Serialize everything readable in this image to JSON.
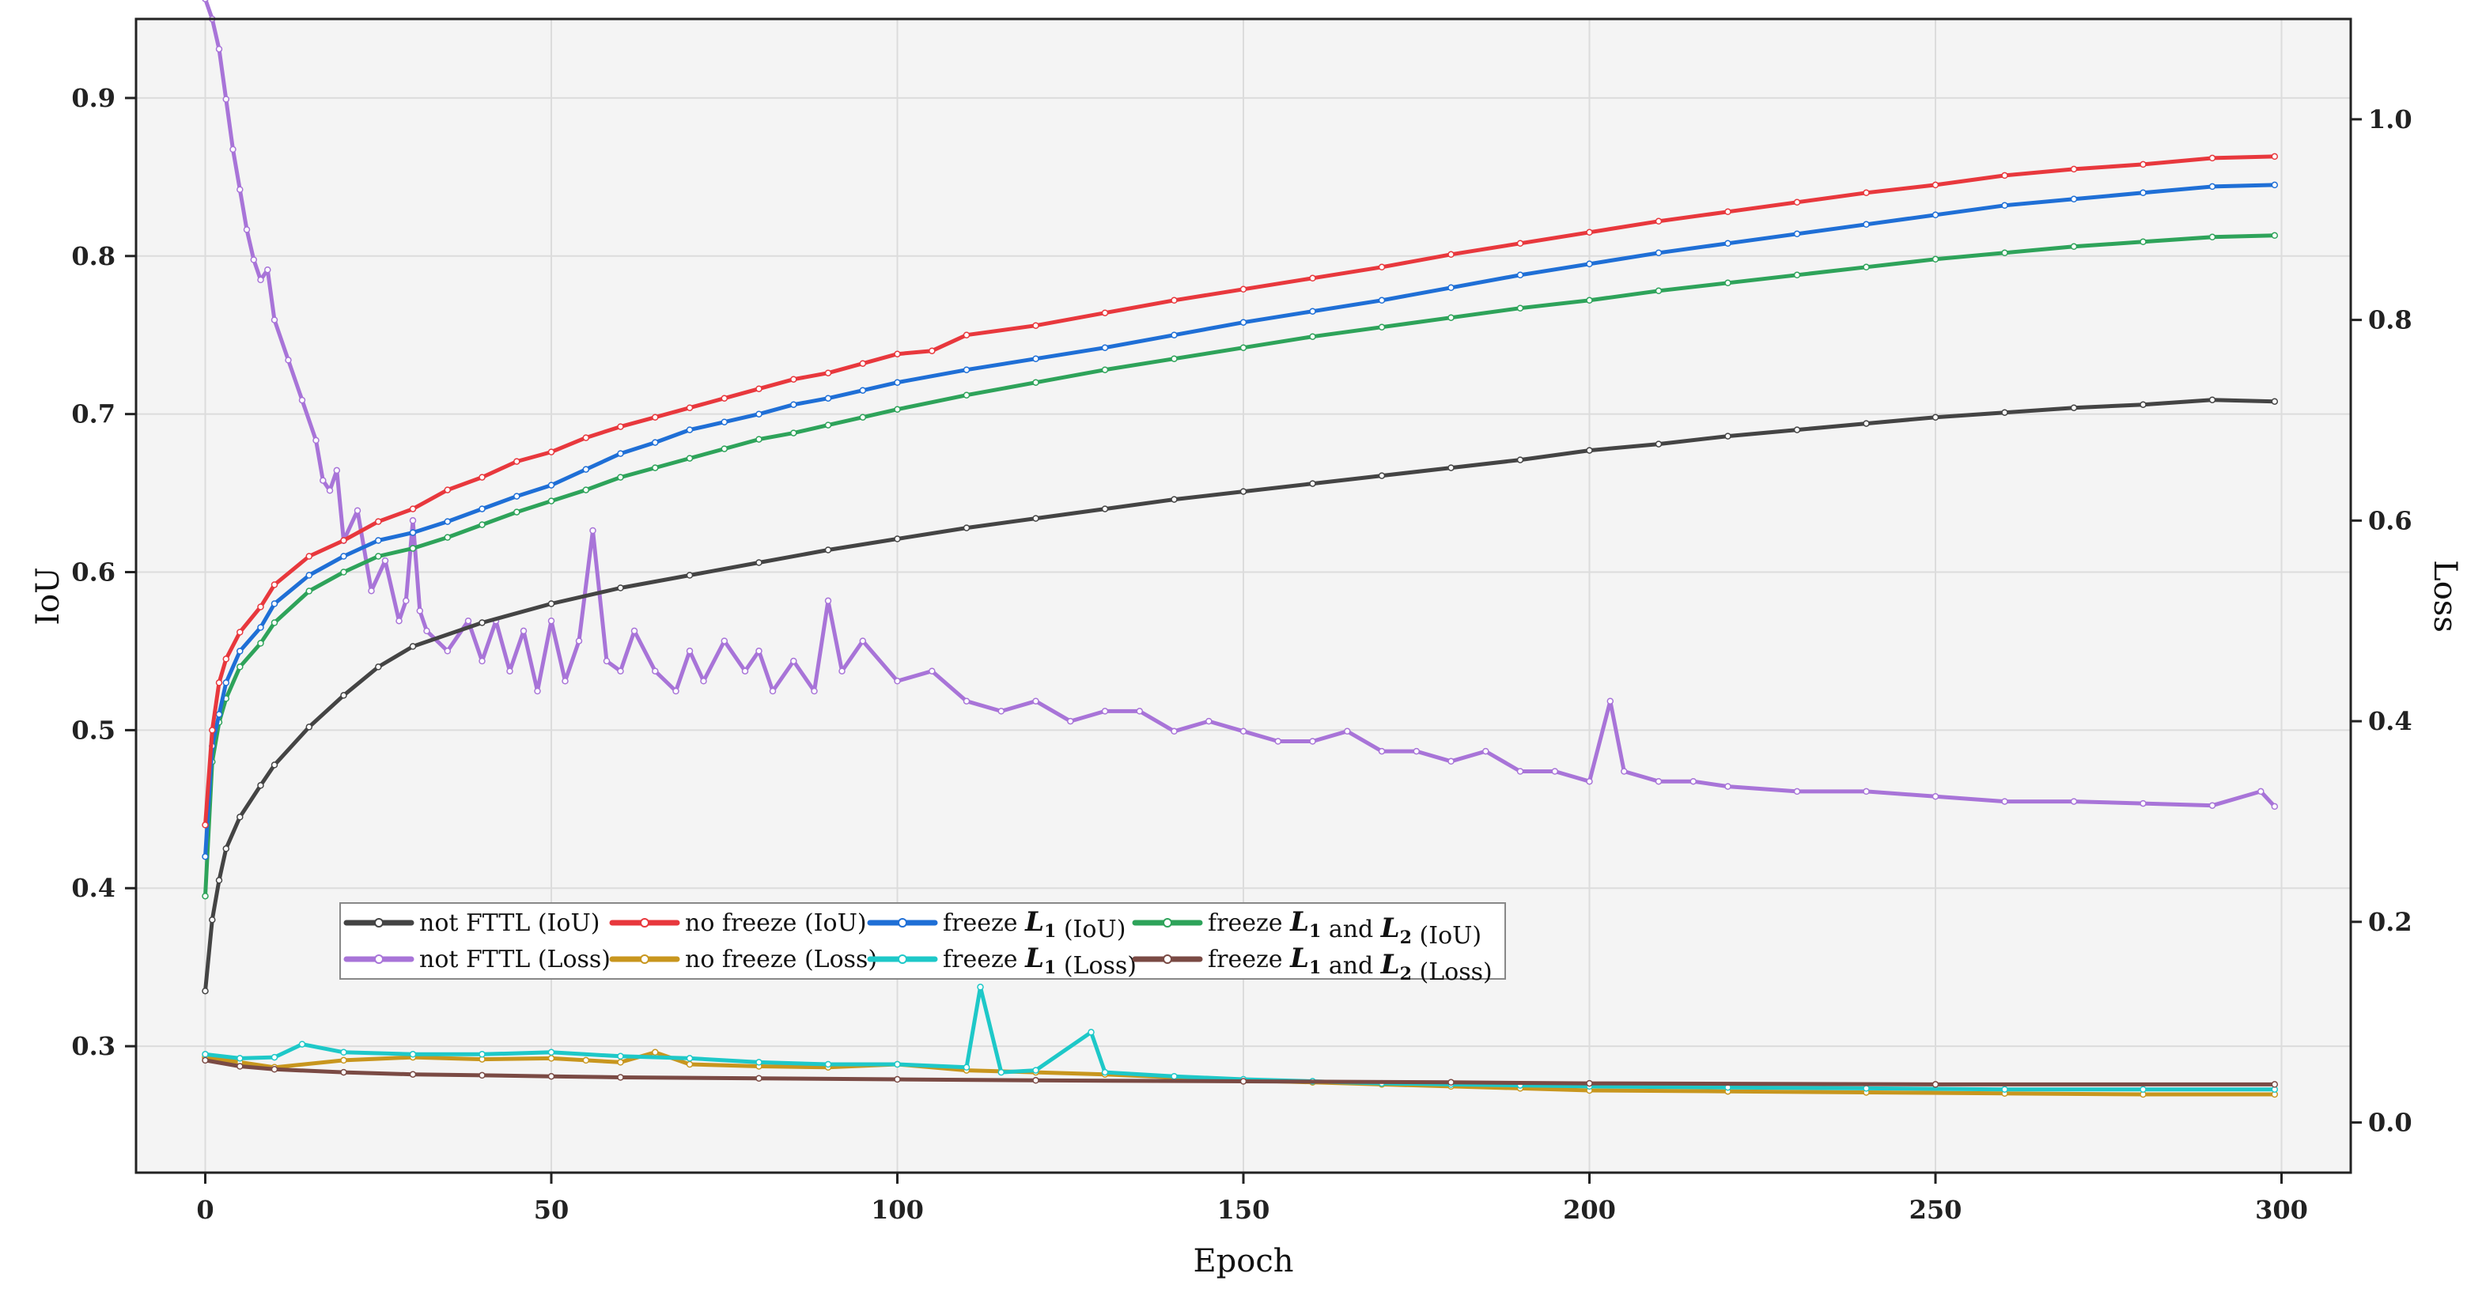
{
  "chart_data": {
    "type": "line",
    "xlabel": "Epoch",
    "ylabel_left": "IoU",
    "ylabel_right": "Loss",
    "xlim": [
      -10,
      310
    ],
    "ylim_left": [
      0.22,
      0.95
    ],
    "ylim_right": [
      -0.05,
      1.1
    ],
    "xticks": [
      0,
      50,
      100,
      150,
      200,
      250,
      300
    ],
    "yticks_left": [
      0.3,
      0.4,
      0.5,
      0.6,
      0.7,
      0.8,
      0.9
    ],
    "yticks_right": [
      0.0,
      0.2,
      0.4,
      0.6,
      0.8,
      1.0
    ],
    "ytick_labels_left": [
      "0.3",
      "0.4",
      "0.5",
      "0.6",
      "0.7",
      "0.8",
      "0.9"
    ],
    "ytick_labels_right": [
      "0.0",
      "0.2",
      "0.4",
      "0.6",
      "0.8",
      "1.0"
    ],
    "grid": true,
    "legend_position": "lower-left, inside, 2 rows x 4 columns",
    "series": [
      {
        "name": "not FTTL (IoU)",
        "axis": "left",
        "color": "#444444",
        "x": [
          0,
          1,
          2,
          3,
          5,
          8,
          10,
          15,
          20,
          25,
          30,
          40,
          50,
          60,
          70,
          80,
          90,
          100,
          110,
          120,
          130,
          140,
          150,
          160,
          170,
          180,
          190,
          200,
          210,
          220,
          230,
          240,
          250,
          260,
          270,
          280,
          290,
          299
        ],
        "y": [
          0.335,
          0.38,
          0.405,
          0.425,
          0.445,
          0.465,
          0.478,
          0.502,
          0.522,
          0.54,
          0.553,
          0.568,
          0.58,
          0.59,
          0.598,
          0.606,
          0.614,
          0.621,
          0.628,
          0.634,
          0.64,
          0.646,
          0.651,
          0.656,
          0.661,
          0.666,
          0.671,
          0.677,
          0.681,
          0.686,
          0.69,
          0.694,
          0.698,
          0.701,
          0.704,
          0.706,
          0.709,
          0.708
        ]
      },
      {
        "name": "no freeze (IoU)",
        "axis": "left",
        "color": "#e8383d",
        "x": [
          0,
          1,
          2,
          3,
          5,
          8,
          10,
          15,
          20,
          25,
          30,
          35,
          40,
          45,
          50,
          55,
          60,
          65,
          70,
          75,
          80,
          85,
          90,
          95,
          100,
          105,
          110,
          120,
          130,
          140,
          150,
          160,
          170,
          180,
          190,
          200,
          210,
          220,
          230,
          240,
          250,
          260,
          270,
          280,
          290,
          299
        ],
        "y": [
          0.44,
          0.5,
          0.53,
          0.545,
          0.562,
          0.578,
          0.592,
          0.61,
          0.62,
          0.632,
          0.64,
          0.652,
          0.66,
          0.67,
          0.676,
          0.685,
          0.692,
          0.698,
          0.704,
          0.71,
          0.716,
          0.722,
          0.726,
          0.732,
          0.738,
          0.74,
          0.75,
          0.756,
          0.764,
          0.772,
          0.779,
          0.786,
          0.793,
          0.801,
          0.808,
          0.815,
          0.822,
          0.828,
          0.834,
          0.84,
          0.845,
          0.851,
          0.855,
          0.858,
          0.862,
          0.863
        ]
      },
      {
        "name": "freeze L1 (IoU)",
        "axis": "left",
        "color": "#1f6fd6",
        "x": [
          0,
          1,
          2,
          3,
          5,
          8,
          10,
          15,
          20,
          25,
          30,
          35,
          40,
          45,
          50,
          55,
          60,
          65,
          70,
          75,
          80,
          85,
          90,
          95,
          100,
          110,
          120,
          130,
          140,
          150,
          160,
          170,
          180,
          190,
          200,
          210,
          220,
          230,
          240,
          250,
          260,
          270,
          280,
          290,
          299
        ],
        "y": [
          0.42,
          0.49,
          0.51,
          0.53,
          0.55,
          0.565,
          0.58,
          0.598,
          0.61,
          0.62,
          0.625,
          0.632,
          0.64,
          0.648,
          0.655,
          0.665,
          0.675,
          0.682,
          0.69,
          0.695,
          0.7,
          0.706,
          0.71,
          0.715,
          0.72,
          0.728,
          0.735,
          0.742,
          0.75,
          0.758,
          0.765,
          0.772,
          0.78,
          0.788,
          0.795,
          0.802,
          0.808,
          0.814,
          0.82,
          0.826,
          0.832,
          0.836,
          0.84,
          0.844,
          0.845
        ]
      },
      {
        "name": "freeze L1 and L2 (IoU)",
        "axis": "left",
        "color": "#2ea35a",
        "x": [
          0,
          1,
          2,
          3,
          5,
          8,
          10,
          15,
          20,
          25,
          30,
          35,
          40,
          45,
          50,
          55,
          60,
          65,
          70,
          75,
          80,
          85,
          90,
          95,
          100,
          110,
          120,
          130,
          140,
          150,
          160,
          170,
          180,
          190,
          200,
          210,
          220,
          230,
          240,
          250,
          260,
          270,
          280,
          290,
          299
        ],
        "y": [
          0.395,
          0.48,
          0.505,
          0.52,
          0.54,
          0.555,
          0.568,
          0.588,
          0.6,
          0.61,
          0.615,
          0.622,
          0.63,
          0.638,
          0.645,
          0.652,
          0.66,
          0.666,
          0.672,
          0.678,
          0.684,
          0.688,
          0.693,
          0.698,
          0.703,
          0.712,
          0.72,
          0.728,
          0.735,
          0.742,
          0.749,
          0.755,
          0.761,
          0.767,
          0.772,
          0.778,
          0.783,
          0.788,
          0.793,
          0.798,
          0.802,
          0.806,
          0.809,
          0.812,
          0.813
        ]
      },
      {
        "name": "not FTTL (Loss)",
        "axis": "right",
        "color": "#a874d8",
        "x": [
          0,
          1,
          2,
          3,
          4,
          5,
          6,
          7,
          8,
          9,
          10,
          12,
          14,
          16,
          17,
          18,
          19,
          20,
          22,
          24,
          26,
          28,
          29,
          30,
          31,
          32,
          35,
          38,
          40,
          42,
          44,
          46,
          48,
          50,
          52,
          54,
          56,
          58,
          60,
          62,
          65,
          68,
          70,
          72,
          75,
          78,
          80,
          82,
          85,
          88,
          90,
          92,
          95,
          100,
          105,
          110,
          115,
          120,
          125,
          130,
          135,
          140,
          145,
          150,
          155,
          160,
          165,
          170,
          175,
          180,
          185,
          190,
          195,
          200,
          203,
          205,
          210,
          215,
          220,
          230,
          240,
          250,
          260,
          270,
          280,
          290,
          297,
          299
        ],
        "y": [
          1.12,
          1.1,
          1.07,
          1.02,
          0.97,
          0.93,
          0.89,
          0.86,
          0.84,
          0.85,
          0.8,
          0.76,
          0.72,
          0.68,
          0.64,
          0.63,
          0.65,
          0.58,
          0.61,
          0.53,
          0.56,
          0.5,
          0.52,
          0.6,
          0.51,
          0.49,
          0.47,
          0.5,
          0.46,
          0.5,
          0.45,
          0.49,
          0.43,
          0.5,
          0.44,
          0.48,
          0.59,
          0.46,
          0.45,
          0.49,
          0.45,
          0.43,
          0.47,
          0.44,
          0.48,
          0.45,
          0.47,
          0.43,
          0.46,
          0.43,
          0.52,
          0.45,
          0.48,
          0.44,
          0.45,
          0.42,
          0.41,
          0.42,
          0.4,
          0.41,
          0.41,
          0.39,
          0.4,
          0.39,
          0.38,
          0.38,
          0.39,
          0.37,
          0.37,
          0.36,
          0.37,
          0.35,
          0.35,
          0.34,
          0.42,
          0.35,
          0.34,
          0.34,
          0.335,
          0.33,
          0.33,
          0.325,
          0.32,
          0.32,
          0.318,
          0.316,
          0.33,
          0.315
        ]
      },
      {
        "name": "no freeze (Loss)",
        "axis": "right",
        "color": "#c8961e",
        "x": [
          0,
          5,
          10,
          20,
          30,
          40,
          50,
          55,
          60,
          65,
          70,
          80,
          90,
          100,
          110,
          120,
          130,
          140,
          150,
          160,
          170,
          180,
          190,
          200,
          220,
          240,
          260,
          280,
          299
        ],
        "y": [
          0.065,
          0.06,
          0.055,
          0.062,
          0.065,
          0.063,
          0.064,
          0.062,
          0.06,
          0.07,
          0.058,
          0.056,
          0.055,
          0.058,
          0.052,
          0.05,
          0.048,
          0.045,
          0.042,
          0.04,
          0.038,
          0.036,
          0.034,
          0.032,
          0.031,
          0.03,
          0.029,
          0.028,
          0.028
        ]
      },
      {
        "name": "freeze L1 (Loss)",
        "axis": "right",
        "color": "#1ec8c8",
        "x": [
          0,
          5,
          10,
          14,
          20,
          30,
          40,
          50,
          60,
          70,
          80,
          90,
          100,
          110,
          112,
          115,
          120,
          128,
          130,
          140,
          150,
          160,
          170,
          180,
          190,
          200,
          220,
          240,
          260,
          280,
          299
        ],
        "y": [
          0.068,
          0.064,
          0.065,
          0.078,
          0.07,
          0.068,
          0.068,
          0.07,
          0.066,
          0.064,
          0.06,
          0.058,
          0.058,
          0.055,
          0.135,
          0.05,
          0.052,
          0.09,
          0.05,
          0.046,
          0.043,
          0.041,
          0.039,
          0.038,
          0.037,
          0.036,
          0.035,
          0.034,
          0.033,
          0.033,
          0.033
        ]
      },
      {
        "name": "freeze L1 and L2 (Loss)",
        "axis": "right",
        "color": "#7a4a44",
        "x": [
          0,
          5,
          10,
          20,
          30,
          40,
          50,
          60,
          80,
          100,
          120,
          150,
          180,
          200,
          250,
          299
        ],
        "y": [
          0.062,
          0.056,
          0.053,
          0.05,
          0.048,
          0.047,
          0.046,
          0.045,
          0.044,
          0.043,
          0.042,
          0.041,
          0.04,
          0.039,
          0.038,
          0.038
        ]
      }
    ]
  },
  "legend": {
    "rows": [
      [
        {
          "series": 0,
          "prefix": "not FTTL (IoU)",
          "math": [],
          "suffix": ""
        },
        {
          "series": 1,
          "prefix": "no freeze (IoU)",
          "math": [],
          "suffix": ""
        },
        {
          "series": 2,
          "prefix": "freeze ",
          "math": [
            "L",
            "1"
          ],
          "suffix": " (IoU)"
        },
        {
          "series": 3,
          "prefix": "freeze ",
          "math": [
            "L",
            "1"
          ],
          "mid": " and ",
          "math2": [
            "L",
            "2"
          ],
          "suffix": " (IoU)"
        }
      ],
      [
        {
          "series": 4,
          "prefix": "not FTTL (Loss)",
          "math": [],
          "suffix": ""
        },
        {
          "series": 5,
          "prefix": "no freeze (Loss)",
          "math": [],
          "suffix": ""
        },
        {
          "series": 6,
          "prefix": "freeze ",
          "math": [
            "L",
            "1"
          ],
          "suffix": " (Loss)"
        },
        {
          "series": 7,
          "prefix": "freeze ",
          "math": [
            "L",
            "1"
          ],
          "mid": " and ",
          "math2": [
            "L",
            "2"
          ],
          "suffix": " (Loss)"
        }
      ]
    ]
  }
}
